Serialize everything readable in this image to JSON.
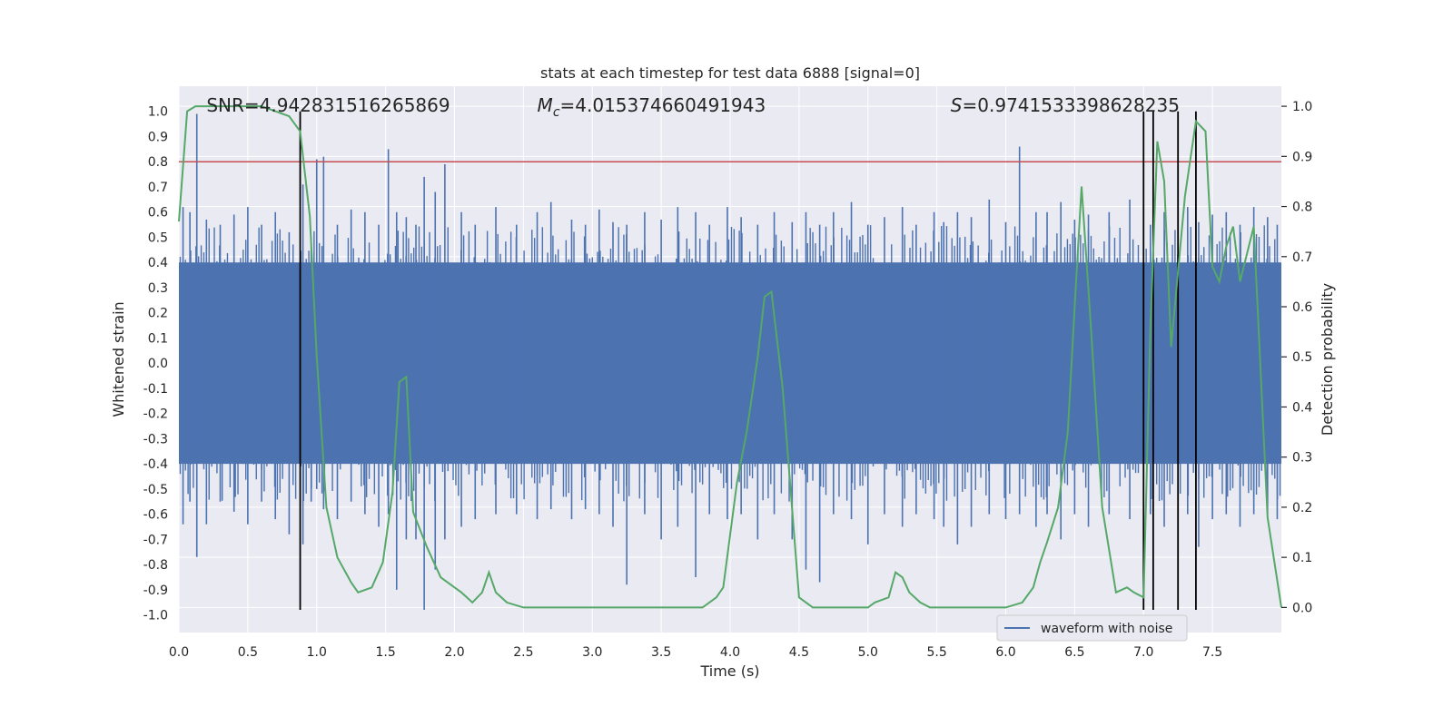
{
  "chart_data": {
    "type": "line",
    "title": "stats at each timestep for test data 6888 [signal=0]",
    "xlabel": "Time (s)",
    "ylabel_left": "Whitened strain",
    "ylabel_right": "Detection probability",
    "xlim": [
      0,
      8
    ],
    "ylim_left": [
      -1.07,
      1.1
    ],
    "ylim_right": [
      -0.05,
      1.04
    ],
    "x_ticks": [
      "0.0",
      "0.5",
      "1.0",
      "1.5",
      "2.0",
      "2.5",
      "3.0",
      "3.5",
      "4.0",
      "4.5",
      "5.0",
      "5.5",
      "6.0",
      "6.5",
      "7.0",
      "7.5"
    ],
    "x_tick_values": [
      0,
      0.5,
      1,
      1.5,
      2,
      2.5,
      3,
      3.5,
      4,
      4.5,
      5,
      5.5,
      6,
      6.5,
      7,
      7.5
    ],
    "y_ticks_left": [
      "1.0",
      "0.9",
      "0.8",
      "0.7",
      "0.6",
      "0.5",
      "0.4",
      "0.3",
      "0.2",
      "0.1",
      "0.0",
      "-0.1",
      "-0.2",
      "-0.3",
      "-0.4",
      "-0.5",
      "-0.6",
      "-0.7",
      "-0.8",
      "-0.9",
      "-1.0"
    ],
    "y_tick_values_left": [
      1.0,
      0.9,
      0.8,
      0.7,
      0.6,
      0.5,
      0.4,
      0.3,
      0.2,
      0.1,
      0.0,
      -0.1,
      -0.2,
      -0.3,
      -0.4,
      -0.5,
      -0.6,
      -0.7,
      -0.8,
      -0.9,
      -1.0
    ],
    "y_ticks_right": [
      "1.0",
      "0.9",
      "0.8",
      "0.7",
      "0.6",
      "0.5",
      "0.4",
      "0.3",
      "0.2",
      "0.1",
      "0.0"
    ],
    "y_tick_values_right": [
      1.0,
      0.9,
      0.8,
      0.7,
      0.6,
      0.5,
      0.4,
      0.3,
      0.2,
      0.1,
      0.0
    ],
    "annotations": [
      {
        "text": "SNR=4.942831516265869",
        "x": 0.2,
        "y": 1.02
      },
      {
        "text_prefix": "M",
        "text_sub": "c",
        "text_suffix": "=4.015374660491943",
        "x": 2.6,
        "y": 1.02
      },
      {
        "text_prefix": "S",
        "text_sub": "",
        "text_suffix": "=0.9741533398628235",
        "x": 5.6,
        "y": 1.02
      }
    ],
    "threshold": {
      "value": 0.8,
      "color": "#c44e52"
    },
    "event_lines": [
      0.88,
      7.0,
      7.07,
      7.25,
      7.38
    ],
    "event_line_range": [
      -0.98,
      1.0
    ],
    "legend": {
      "entries": [
        "waveform with noise"
      ],
      "placement": "lower-right"
    },
    "grid": true,
    "colors": {
      "waveform": "#4c72b0",
      "probability": "#55a868",
      "events": "#000000",
      "background": "#eaeaf2"
    },
    "waveform_spikes": [
      [
        0.03,
        0.62,
        -0.64
      ],
      [
        0.08,
        0.6,
        -0.55
      ],
      [
        0.13,
        0.99,
        -0.77
      ],
      [
        0.2,
        0.57,
        -0.64
      ],
      [
        0.3,
        0.55,
        -0.55
      ],
      [
        0.4,
        0.59,
        -0.59
      ],
      [
        0.5,
        0.62,
        -0.64
      ],
      [
        0.6,
        0.55,
        -0.55
      ],
      [
        0.7,
        0.6,
        -0.62
      ],
      [
        0.8,
        0.52,
        -0.68
      ],
      [
        0.9,
        0.71,
        -0.72
      ],
      [
        0.96,
        0.5,
        -0.55
      ],
      [
        1.0,
        0.81,
        -0.5
      ],
      [
        1.05,
        0.82,
        -0.58
      ],
      [
        1.15,
        0.55,
        -0.62
      ],
      [
        1.25,
        0.61,
        -0.55
      ],
      [
        1.35,
        0.6,
        -0.6
      ],
      [
        1.45,
        0.55,
        -0.65
      ],
      [
        1.52,
        0.85,
        -0.6
      ],
      [
        1.58,
        0.6,
        -0.9
      ],
      [
        1.65,
        0.58,
        -0.7
      ],
      [
        1.72,
        0.55,
        -0.7
      ],
      [
        1.78,
        0.74,
        -0.98
      ],
      [
        1.86,
        0.68,
        -0.82
      ],
      [
        1.93,
        0.79,
        -0.7
      ],
      [
        2.05,
        0.6,
        -0.65
      ],
      [
        2.15,
        0.55,
        -0.62
      ],
      [
        2.3,
        0.62,
        -0.6
      ],
      [
        2.45,
        0.55,
        -0.6
      ],
      [
        2.6,
        0.6,
        -0.62
      ],
      [
        2.7,
        0.64,
        -0.58
      ],
      [
        2.85,
        0.57,
        -0.62
      ],
      [
        2.95,
        0.55,
        -0.58
      ],
      [
        3.05,
        0.61,
        -0.6
      ],
      [
        3.15,
        0.56,
        -0.65
      ],
      [
        3.25,
        0.55,
        -0.88
      ],
      [
        3.38,
        0.6,
        -0.6
      ],
      [
        3.5,
        0.57,
        -0.7
      ],
      [
        3.62,
        0.62,
        -0.65
      ],
      [
        3.75,
        0.6,
        -0.85
      ],
      [
        3.85,
        0.55,
        -0.6
      ],
      [
        3.98,
        0.62,
        -0.62
      ],
      [
        4.08,
        0.58,
        -0.6
      ],
      [
        4.2,
        0.55,
        -0.7
      ],
      [
        4.32,
        0.6,
        -0.6
      ],
      [
        4.45,
        0.56,
        -0.7
      ],
      [
        4.55,
        0.6,
        -0.82
      ],
      [
        4.65,
        0.55,
        -0.87
      ],
      [
        4.75,
        0.6,
        -0.6
      ],
      [
        4.88,
        0.64,
        -0.62
      ],
      [
        5.0,
        0.55,
        -0.72
      ],
      [
        5.12,
        0.58,
        -0.6
      ],
      [
        5.25,
        0.62,
        -0.65
      ],
      [
        5.35,
        0.55,
        -0.6
      ],
      [
        5.48,
        0.6,
        -0.62
      ],
      [
        5.55,
        0.56,
        -0.65
      ],
      [
        5.65,
        0.6,
        -0.72
      ],
      [
        5.75,
        0.58,
        -0.65
      ],
      [
        5.88,
        0.65,
        -0.6
      ],
      [
        6.0,
        0.56,
        -0.62
      ],
      [
        6.1,
        0.86,
        -0.6
      ],
      [
        6.22,
        0.6,
        -0.65
      ],
      [
        6.3,
        0.6,
        -0.6
      ],
      [
        6.4,
        0.64,
        -0.7
      ],
      [
        6.5,
        0.57,
        -0.6
      ],
      [
        6.6,
        0.59,
        -0.65
      ],
      [
        6.75,
        0.6,
        -0.6
      ],
      [
        6.9,
        0.65,
        -0.62
      ],
      [
        7.05,
        0.55,
        -0.6
      ],
      [
        7.15,
        0.6,
        -0.65
      ],
      [
        7.32,
        0.62,
        -0.6
      ],
      [
        7.4,
        0.56,
        -0.73
      ],
      [
        7.5,
        0.59,
        -0.62
      ],
      [
        7.6,
        0.6,
        -0.6
      ],
      [
        7.7,
        0.55,
        -0.65
      ],
      [
        7.8,
        0.62,
        -0.6
      ],
      [
        7.9,
        0.58,
        -0.6
      ],
      [
        7.97,
        0.55,
        -0.62
      ]
    ],
    "series": [
      {
        "name": "waveform with noise",
        "axis": "left",
        "color": "#4c72b0",
        "band": [
          -0.4,
          0.4
        ]
      },
      {
        "axis": "right",
        "color": "#55a868",
        "x": [
          0.0,
          0.06,
          0.12,
          0.2,
          0.4,
          0.6,
          0.7,
          0.8,
          0.88,
          0.95,
          1.0,
          1.07,
          1.15,
          1.25,
          1.3,
          1.4,
          1.48,
          1.55,
          1.6,
          1.65,
          1.7,
          1.8,
          1.9,
          2.0,
          2.05,
          2.13,
          2.2,
          2.25,
          2.3,
          2.38,
          2.5,
          2.6,
          2.7,
          3.0,
          3.2,
          3.5,
          3.7,
          3.8,
          3.9,
          3.95,
          4.05,
          4.12,
          4.2,
          4.25,
          4.3,
          4.38,
          4.5,
          4.6,
          4.8,
          5.0,
          5.05,
          5.15,
          5.2,
          5.25,
          5.3,
          5.38,
          5.45,
          5.5,
          5.6,
          5.8,
          6.0,
          6.12,
          6.2,
          6.25,
          6.3,
          6.38,
          6.45,
          6.5,
          6.55,
          6.62,
          6.7,
          6.8,
          6.88,
          6.93,
          7.0,
          7.05,
          7.1,
          7.15,
          7.2,
          7.3,
          7.38,
          7.45,
          7.5,
          7.55,
          7.6,
          7.65,
          7.7,
          7.8,
          7.9,
          8.0
        ],
        "y": [
          0.77,
          0.99,
          1.0,
          1.0,
          1.0,
          1.0,
          0.99,
          0.98,
          0.95,
          0.78,
          0.5,
          0.2,
          0.1,
          0.05,
          0.03,
          0.04,
          0.09,
          0.23,
          0.45,
          0.46,
          0.19,
          0.12,
          0.06,
          0.04,
          0.03,
          0.01,
          0.03,
          0.07,
          0.03,
          0.01,
          0.0,
          0.0,
          0.0,
          0.0,
          0.0,
          0.0,
          0.0,
          0.0,
          0.02,
          0.04,
          0.25,
          0.35,
          0.5,
          0.62,
          0.63,
          0.44,
          0.02,
          0.0,
          0.0,
          0.0,
          0.01,
          0.02,
          0.07,
          0.06,
          0.03,
          0.01,
          0.0,
          0.0,
          0.0,
          0.0,
          0.0,
          0.01,
          0.04,
          0.09,
          0.13,
          0.2,
          0.35,
          0.6,
          0.84,
          0.55,
          0.2,
          0.03,
          0.04,
          0.03,
          0.02,
          0.56,
          0.93,
          0.85,
          0.52,
          0.82,
          0.97,
          0.95,
          0.68,
          0.65,
          0.72,
          0.76,
          0.65,
          0.76,
          0.18,
          0.0
        ]
      }
    ]
  }
}
